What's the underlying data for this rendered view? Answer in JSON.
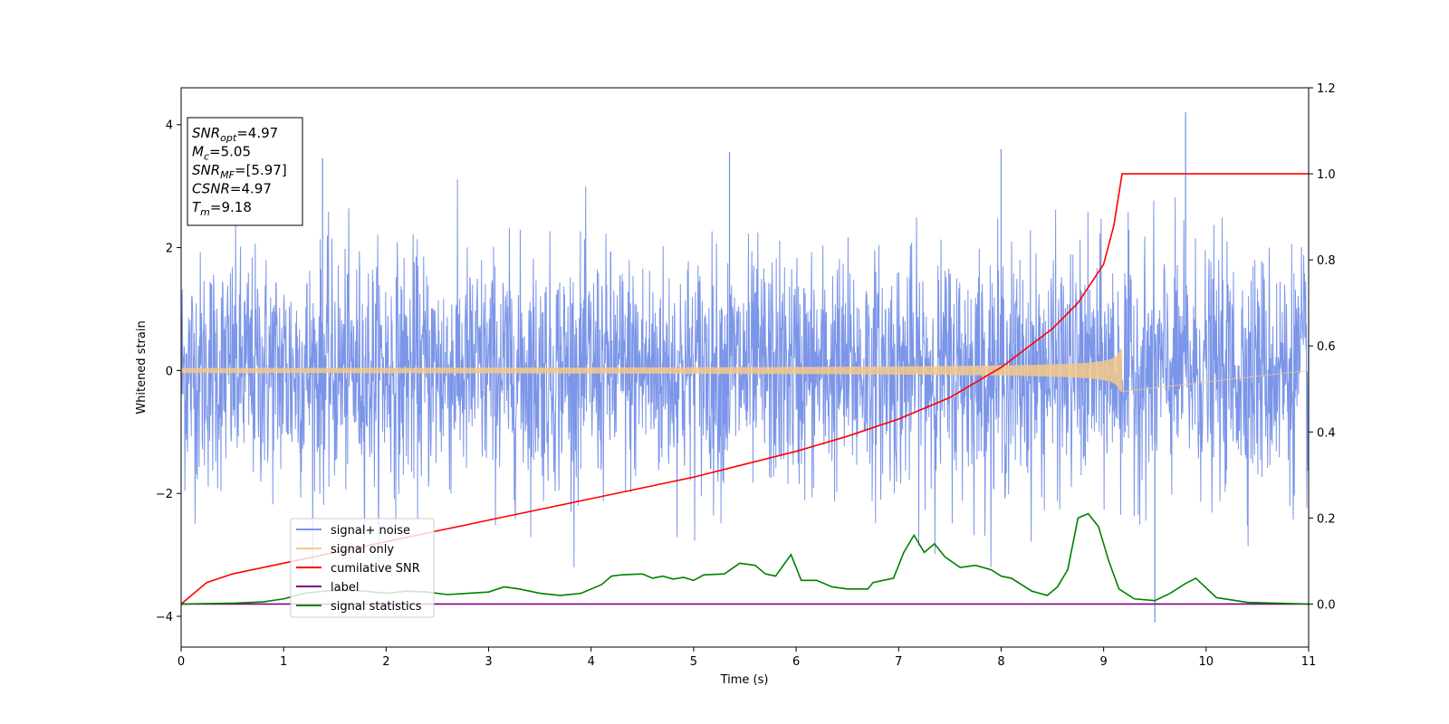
{
  "chart_data": {
    "type": "line",
    "xlabel": "Time (s)",
    "ylabel": "Whitened strain",
    "xlim": [
      0,
      11
    ],
    "ylim": [
      -4.5,
      4.6
    ],
    "ylim_right": [
      -0.1,
      1.2
    ],
    "x_ticks": [
      0,
      1,
      2,
      3,
      4,
      5,
      6,
      7,
      8,
      9,
      10,
      11
    ],
    "x_tick_labels": [
      "0",
      "1",
      "2",
      "3",
      "4",
      "5",
      "6",
      "7",
      "8",
      "9",
      "10",
      "11"
    ],
    "y_ticks": [
      -4,
      -2,
      0,
      2,
      4
    ],
    "y_tick_labels": [
      "−4",
      "−2",
      "0",
      "2",
      "4"
    ],
    "y_right_ticks": [
      0.0,
      0.2,
      0.4,
      0.6,
      0.8,
      1.0,
      1.2
    ],
    "y_right_tick_labels": [
      "0.0",
      "0.2",
      "0.4",
      "0.6",
      "0.8",
      "1.0",
      "1.2"
    ],
    "grid": false,
    "legend_position": "lower-left",
    "annotation": [
      {
        "main": "SNR",
        "sub": "opt",
        "value": "=4.97"
      },
      {
        "main": "M",
        "sub": "c",
        "value": "=5.05"
      },
      {
        "main": "SNR",
        "sub": "MF",
        "value": "=[5.97]"
      },
      {
        "main": "CSNR",
        "sub": "",
        "value": "=4.97"
      },
      {
        "main": "T",
        "sub": "m",
        "value": "=9.18"
      }
    ],
    "series": [
      {
        "name": "signal+ noise",
        "axis": "left",
        "color": "#7b95e8",
        "kind": "noise",
        "typical_range": [
          -2.0,
          2.0
        ],
        "extremes": [
          -4.1,
          4.2
        ],
        "notable_spikes": [
          {
            "x": 9.5,
            "y": -4.1
          },
          {
            "x": 9.8,
            "y": 4.2
          },
          {
            "x": 8.0,
            "y": 3.6
          },
          {
            "x": 5.35,
            "y": 3.55
          },
          {
            "x": 1.38,
            "y": 3.45
          }
        ]
      },
      {
        "name": "signal only",
        "axis": "left",
        "color": "#f5c98a",
        "kind": "chirp",
        "start_x": 0,
        "end_x": 9.18,
        "start_amplitude": 0.04,
        "peak_amplitude": 0.45
      },
      {
        "name": "cumilative SNR",
        "axis": "right",
        "color": "#ff0000",
        "kind": "line",
        "x": [
          0,
          0.25,
          0.5,
          1,
          1.5,
          2,
          2.5,
          3,
          3.5,
          4,
          4.5,
          5,
          5.5,
          6,
          6.5,
          7,
          7.5,
          8,
          8.5,
          8.75,
          9,
          9.1,
          9.18,
          11
        ],
        "y": [
          0.0,
          0.05,
          0.07,
          0.095,
          0.12,
          0.145,
          0.17,
          0.195,
          0.22,
          0.245,
          0.27,
          0.295,
          0.325,
          0.355,
          0.39,
          0.43,
          0.48,
          0.55,
          0.64,
          0.7,
          0.79,
          0.88,
          1.0,
          1.0
        ]
      },
      {
        "name": "label",
        "axis": "right",
        "color": "#800080",
        "kind": "line",
        "x": [
          0,
          11
        ],
        "y": [
          0,
          0
        ]
      },
      {
        "name": "signal statistics",
        "axis": "right",
        "color": "#008000",
        "kind": "line",
        "x": [
          0,
          0.5,
          0.8,
          1.0,
          1.2,
          1.4,
          1.6,
          1.8,
          2.0,
          2.2,
          2.4,
          2.6,
          2.8,
          3.0,
          3.15,
          3.3,
          3.5,
          3.7,
          3.9,
          4.1,
          4.2,
          4.3,
          4.5,
          4.6,
          4.7,
          4.8,
          4.9,
          5.0,
          5.1,
          5.3,
          5.45,
          5.6,
          5.7,
          5.8,
          5.95,
          6.05,
          6.2,
          6.35,
          6.5,
          6.7,
          6.75,
          6.85,
          6.95,
          7.05,
          7.15,
          7.25,
          7.35,
          7.45,
          7.6,
          7.75,
          7.9,
          8.0,
          8.1,
          8.3,
          8.45,
          8.55,
          8.65,
          8.75,
          8.85,
          8.95,
          9.05,
          9.15,
          9.3,
          9.5,
          9.65,
          9.8,
          9.9,
          10.1,
          10.4,
          11.0
        ],
        "y": [
          0.0,
          0.002,
          0.005,
          0.012,
          0.025,
          0.03,
          0.032,
          0.03,
          0.025,
          0.03,
          0.028,
          0.022,
          0.025,
          0.028,
          0.04,
          0.035,
          0.025,
          0.02,
          0.025,
          0.045,
          0.065,
          0.068,
          0.07,
          0.06,
          0.065,
          0.058,
          0.062,
          0.055,
          0.068,
          0.07,
          0.095,
          0.09,
          0.07,
          0.065,
          0.115,
          0.055,
          0.055,
          0.04,
          0.035,
          0.035,
          0.05,
          0.055,
          0.06,
          0.12,
          0.16,
          0.12,
          0.14,
          0.11,
          0.085,
          0.09,
          0.08,
          0.065,
          0.06,
          0.03,
          0.02,
          0.04,
          0.08,
          0.2,
          0.21,
          0.18,
          0.1,
          0.035,
          0.012,
          0.008,
          0.025,
          0.048,
          0.06,
          0.015,
          0.004,
          0.0
        ]
      }
    ]
  }
}
